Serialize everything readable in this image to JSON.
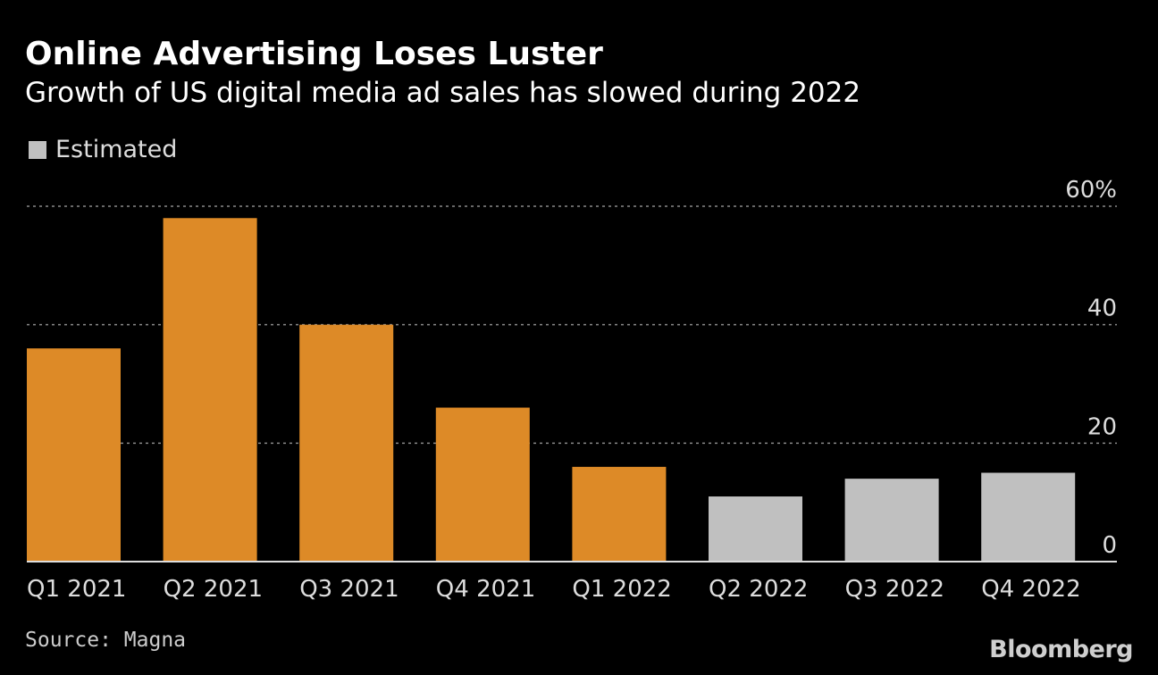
{
  "header": {
    "title": "Online Advertising Loses Luster",
    "subtitle": "Growth of US digital media ad sales has slowed during 2022"
  },
  "legend": {
    "label": "Estimated",
    "color": "#c0c0c0"
  },
  "colors": {
    "actual": "#dd8a27",
    "estimated": "#c0c0c0",
    "grid": "#8a8a8a",
    "axis": "#dddddd",
    "text": "#dddddd"
  },
  "chart_data": {
    "type": "bar",
    "title": "Online Advertising Loses Luster",
    "subtitle": "Growth of US digital media ad sales has slowed during 2022",
    "categories": [
      "Q1 2021",
      "Q2 2021",
      "Q3 2021",
      "Q4 2021",
      "Q1 2022",
      "Q2 2022",
      "Q3 2022",
      "Q4 2022"
    ],
    "values": [
      36,
      58,
      40,
      26,
      16,
      11,
      14,
      15
    ],
    "estimated": [
      false,
      false,
      false,
      false,
      false,
      true,
      true,
      true
    ],
    "ylim": [
      0,
      60
    ],
    "yticks": [
      0,
      20,
      40,
      60
    ],
    "ytick_labels": [
      "0",
      "20",
      "40",
      "60%"
    ],
    "xlabel": "",
    "ylabel": "",
    "grid": true,
    "legend": [
      "Estimated"
    ],
    "legend_position": "top-left"
  },
  "footer": {
    "source": "Source: Magna",
    "brand": "Bloomberg"
  }
}
